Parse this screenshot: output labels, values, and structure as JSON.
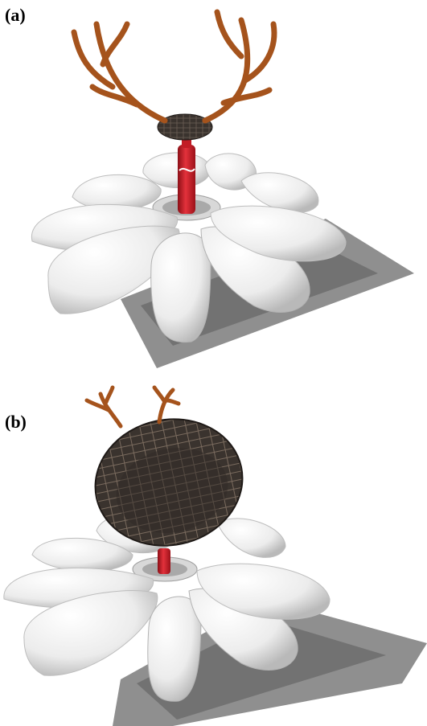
{
  "figure": {
    "panels": [
      {
        "label": "(a)"
      },
      {
        "label": "(b)"
      }
    ]
  },
  "colors": {
    "floor": "#8f8f8f",
    "petal": "#f4f4f4",
    "petal_shadow": "#c9c9c9",
    "antler": "#a5531c",
    "seat": "#3c3530",
    "bottle": "#d31a26"
  }
}
